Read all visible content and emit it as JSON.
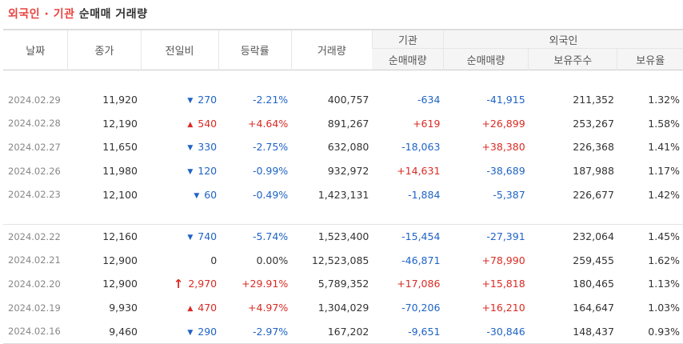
{
  "title": {
    "part1": "외국인 · 기관",
    "part2": "순매매 거래량"
  },
  "headers": {
    "date": "날짜",
    "close": "종가",
    "change": "전일비",
    "rate": "등락률",
    "volume": "거래량",
    "institution": "기관",
    "foreign": "외국인",
    "inst_net": "순매매량",
    "foreign_net": "순매매량",
    "foreign_holdings": "보유주수",
    "foreign_ratio": "보유율"
  },
  "colors": {
    "up": "#d92b24",
    "down": "#1f63c6",
    "accent": "#e8433f"
  },
  "group1": [
    {
      "date": "2024.02.29",
      "close": "11,920",
      "dir": "down",
      "change": "270",
      "rate": "-2.21%",
      "volume": "400,757",
      "inst": "-634",
      "foreign": "-41,915",
      "hold": "211,352",
      "ratio": "1.32%"
    },
    {
      "date": "2024.02.28",
      "close": "12,190",
      "dir": "up",
      "change": "540",
      "rate": "+4.64%",
      "volume": "891,267",
      "inst": "+619",
      "foreign": "+26,899",
      "hold": "253,267",
      "ratio": "1.58%"
    },
    {
      "date": "2024.02.27",
      "close": "11,650",
      "dir": "down",
      "change": "330",
      "rate": "-2.75%",
      "volume": "632,080",
      "inst": "-18,063",
      "foreign": "+38,380",
      "hold": "226,368",
      "ratio": "1.41%"
    },
    {
      "date": "2024.02.26",
      "close": "11,980",
      "dir": "down",
      "change": "120",
      "rate": "-0.99%",
      "volume": "932,972",
      "inst": "+14,631",
      "foreign": "-38,689",
      "hold": "187,988",
      "ratio": "1.17%"
    },
    {
      "date": "2024.02.23",
      "close": "12,100",
      "dir": "down",
      "change": "60",
      "rate": "-0.49%",
      "volume": "1,423,131",
      "inst": "-1,884",
      "foreign": "-5,387",
      "hold": "226,677",
      "ratio": "1.42%"
    }
  ],
  "group2": [
    {
      "date": "2024.02.22",
      "close": "12,160",
      "dir": "down",
      "change": "740",
      "rate": "-5.74%",
      "volume": "1,523,400",
      "inst": "-15,454",
      "foreign": "-27,391",
      "hold": "232,064",
      "ratio": "1.45%"
    },
    {
      "date": "2024.02.21",
      "close": "12,900",
      "dir": "none",
      "change": "0",
      "rate": "0.00%",
      "volume": "12,523,085",
      "inst": "-46,871",
      "foreign": "+78,990",
      "hold": "259,455",
      "ratio": "1.62%"
    },
    {
      "date": "2024.02.20",
      "close": "12,900",
      "dir": "limit-up",
      "change": "2,970",
      "rate": "+29.91%",
      "volume": "5,789,352",
      "inst": "+17,086",
      "foreign": "+15,818",
      "hold": "180,465",
      "ratio": "1.13%"
    },
    {
      "date": "2024.02.19",
      "close": "9,930",
      "dir": "up",
      "change": "470",
      "rate": "+4.97%",
      "volume": "1,304,029",
      "inst": "-70,206",
      "foreign": "+16,210",
      "hold": "164,647",
      "ratio": "1.03%"
    },
    {
      "date": "2024.02.16",
      "close": "9,460",
      "dir": "down",
      "change": "290",
      "rate": "-2.97%",
      "volume": "167,202",
      "inst": "-9,651",
      "foreign": "-30,846",
      "hold": "148,437",
      "ratio": "0.93%"
    }
  ]
}
